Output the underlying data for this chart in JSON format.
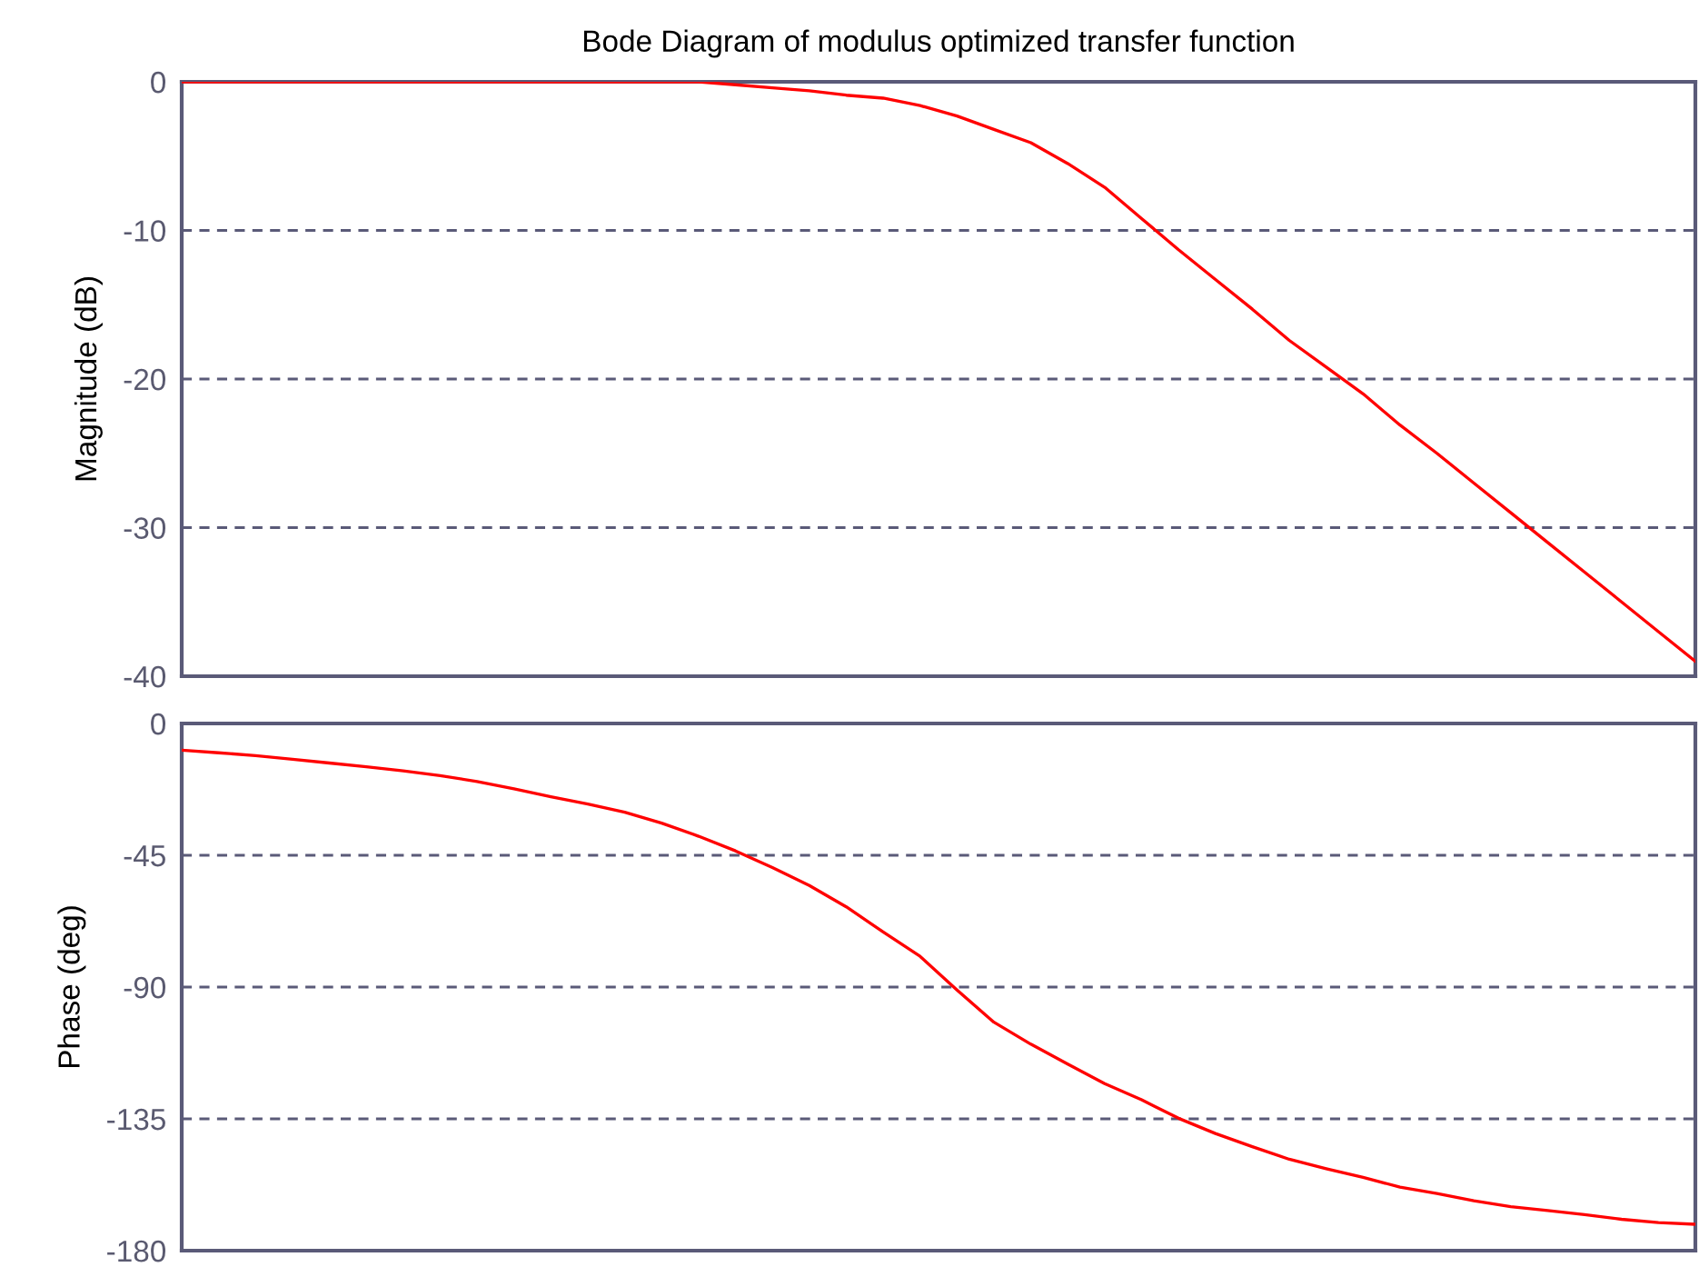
{
  "chart_data": [
    {
      "type": "line",
      "title": "Bode Diagram of modulus optimized transfer function",
      "ylabel": "Magnitude (dB)",
      "categories": [
        null,
        null,
        null,
        null,
        null,
        null,
        null,
        null,
        null,
        null,
        null,
        null,
        null,
        null,
        null,
        null,
        null,
        null,
        null,
        null,
        null,
        null,
        null,
        null,
        null,
        null,
        null,
        null,
        null,
        null,
        null,
        null,
        null,
        null,
        null,
        null,
        null,
        null,
        null,
        null,
        null,
        null
      ],
      "series": [
        {
          "color": "#ff0000",
          "values": [
            0,
            0,
            0,
            0,
            0,
            0,
            0,
            0,
            0,
            0,
            0,
            0,
            0,
            0,
            0,
            -0.2,
            -0.4,
            -0.6,
            -0.9,
            -1.1,
            -1.6,
            -2.3,
            -3.2,
            -4.1,
            -5.5,
            -7.1,
            -9.2,
            -11.3,
            -13.3,
            -15.3,
            -17.4,
            -19.2,
            -21.0,
            -23.1,
            -25.0,
            -27.0,
            -29.0,
            -31.0,
            -33.0,
            -35.0,
            -37.0,
            -39.0
          ]
        }
      ],
      "ylim": [
        -40,
        0
      ],
      "yticks": [
        -40,
        -30,
        -20,
        -10,
        0
      ],
      "grid": "y",
      "tick_labels": "y",
      "line_style": "solid",
      "marker": "none"
    },
    {
      "type": "line",
      "ylabel": "Phase (deg)",
      "categories": [
        null,
        null,
        null,
        null,
        null,
        null,
        null,
        null,
        null,
        null,
        null,
        null,
        null,
        null,
        null,
        null,
        null,
        null,
        null,
        null,
        null,
        null,
        null,
        null,
        null,
        null,
        null,
        null,
        null,
        null,
        null,
        null,
        null,
        null,
        null,
        null,
        null,
        null,
        null,
        null,
        null,
        null
      ],
      "series": [
        {
          "color": "#ff0000",
          "values": [
            -9.1,
            -10,
            -11,
            -12.2,
            -13.5,
            -14.8,
            -16.2,
            -17.8,
            -19.8,
            -22.3,
            -25,
            -27.5,
            -30.3,
            -34,
            -38.5,
            -43.5,
            -49.2,
            -55.3,
            -62.6,
            -71.2,
            -79.5,
            -91,
            -102,
            -109.5,
            -116.3,
            -123,
            -128.5,
            -134.8,
            -140,
            -144.5,
            -148.8,
            -152,
            -155,
            -158.3,
            -160.5,
            -163,
            -165,
            -166.3,
            -167.7,
            -169.3,
            -170.4,
            -171
          ]
        }
      ],
      "ylim": [
        -180,
        0
      ],
      "yticks": [
        -180,
        -135,
        -90,
        -45,
        0
      ],
      "grid": "y",
      "tick_labels": "y",
      "line_style": "solid",
      "marker": "none"
    }
  ]
}
